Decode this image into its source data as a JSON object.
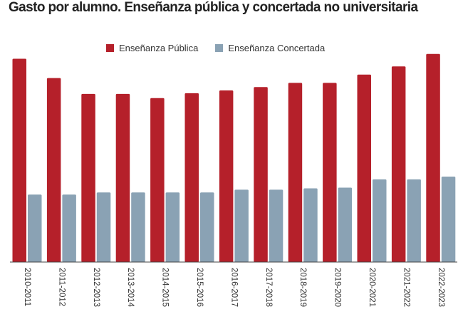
{
  "chart_data": {
    "type": "bar",
    "title": "Gasto por alumno. Enseñanza pública y concertada no universitaria",
    "categories": [
      "2010-2011",
      "2011-2012",
      "2012-2013",
      "2013-2014",
      "2014-2015",
      "2015-2016",
      "2016-2017",
      "2017-2018",
      "2018-2019",
      "2019-2020",
      "2020-2021",
      "2021-2022",
      "2022-2023"
    ],
    "series": [
      {
        "name": "Enseñanza Pública",
        "color": "#b5202a",
        "values": [
          295,
          267,
          244,
          244,
          238,
          245,
          249,
          254,
          260,
          260,
          272,
          284,
          302
        ]
      },
      {
        "name": "Enseñanza Concertada",
        "color": "#8aa2b4",
        "values": [
          98,
          98,
          101,
          101,
          101,
          101,
          105,
          105,
          107,
          108,
          120,
          120,
          124
        ]
      }
    ],
    "ylim": [
      0,
      310
    ],
    "grid": false,
    "legend_position": "top-center"
  }
}
